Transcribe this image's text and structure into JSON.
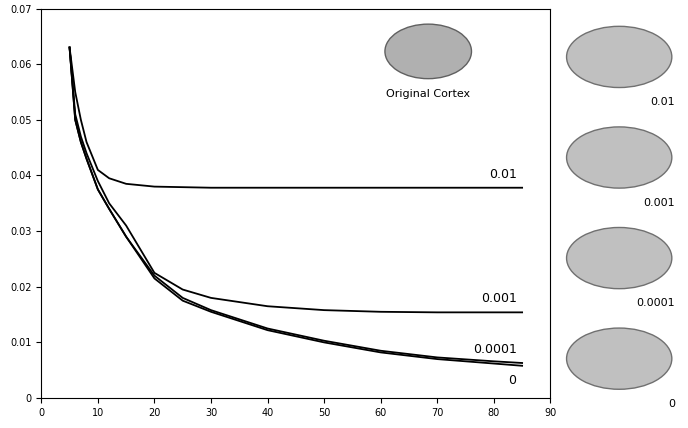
{
  "chart_data": {
    "type": "line",
    "x": [
      5,
      6,
      7,
      8,
      10,
      12,
      15,
      20,
      25,
      30,
      40,
      50,
      60,
      70,
      80,
      85
    ],
    "series": [
      {
        "name": "0.01",
        "color": "#000000",
        "line_style": "solid",
        "values": [
          0.063,
          0.055,
          0.05,
          0.046,
          0.041,
          0.0395,
          0.0385,
          0.038,
          0.0379,
          0.0378,
          0.0378,
          0.0378,
          0.0378,
          0.0378,
          0.0378,
          0.0378
        ]
      },
      {
        "name": "0.001",
        "color": "#000000",
        "line_style": "solid",
        "values": [
          0.063,
          0.051,
          0.047,
          0.044,
          0.039,
          0.035,
          0.031,
          0.0225,
          0.0195,
          0.018,
          0.0165,
          0.0158,
          0.0155,
          0.0154,
          0.0154,
          0.0154
        ]
      },
      {
        "name": "0.0001",
        "color": "#000000",
        "line_style": "solid",
        "values": [
          0.063,
          0.05,
          0.046,
          0.043,
          0.0375,
          0.034,
          0.029,
          0.022,
          0.018,
          0.0158,
          0.0125,
          0.0103,
          0.0085,
          0.0073,
          0.0066,
          0.0063
        ]
      },
      {
        "name": "0",
        "color": "#000000",
        "line_style": "solid",
        "values": [
          0.063,
          0.05,
          0.046,
          0.043,
          0.0375,
          0.034,
          0.029,
          0.0215,
          0.0175,
          0.0155,
          0.0122,
          0.01,
          0.0082,
          0.007,
          0.0062,
          0.0058
        ]
      }
    ],
    "annotations": [
      "Original Cortex"
    ],
    "xlim": [
      0,
      90
    ],
    "xticks": [
      0,
      10,
      20,
      30,
      40,
      50,
      60,
      70,
      80,
      90
    ],
    "ylim": [
      0,
      0.07
    ],
    "yticks": [
      0,
      0.01,
      0.02,
      0.03,
      0.04,
      0.05,
      0.06,
      0.07
    ],
    "grid": false
  }
}
